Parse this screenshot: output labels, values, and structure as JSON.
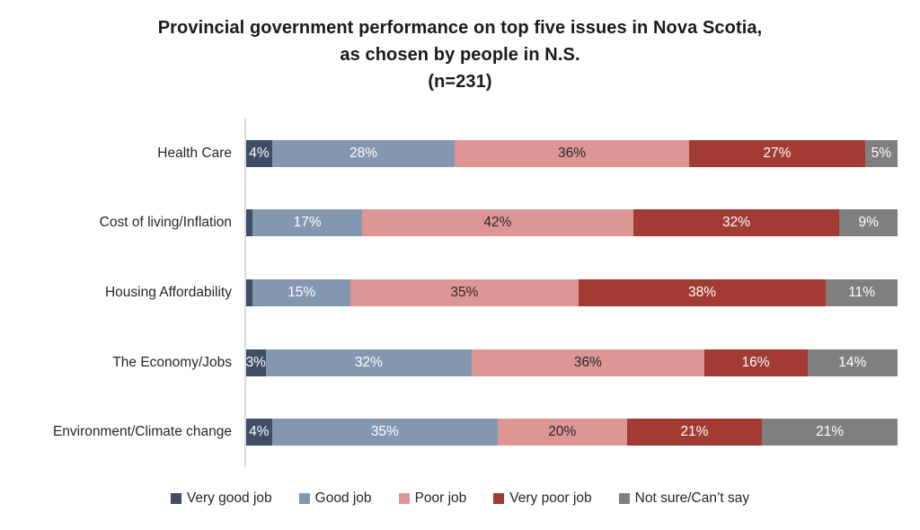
{
  "title": {
    "line1": "Provincial government performance on top five issues in Nova Scotia,",
    "line2": "as chosen by people in N.S.",
    "line3": "(n=231)"
  },
  "colors": {
    "very_good_job": "#3F4E66",
    "good_job": "#8497B0",
    "poor_job": "#DE9695",
    "very_poor_job": "#A23B33",
    "not_sure": "#7F7F7F",
    "axis_line": "#D9D9D9",
    "label_on_dark": "#FFFFFF",
    "label_on_light": "#262626"
  },
  "chart_data": {
    "type": "bar",
    "subtype": "horizontal-100pct-stacked",
    "title": "Provincial government performance on top five issues in Nova Scotia, as chosen by people in N.S. (n=231)",
    "categories": [
      "Health Care",
      "Cost of living/Inflation",
      "Housing Affordability",
      "The Economy/Jobs",
      "Environment/Climate change"
    ],
    "series": [
      {
        "name": "Very good job",
        "color_key": "very_good_job",
        "label_style": "dark",
        "values": [
          4,
          1,
          1,
          3,
          4
        ],
        "labels": [
          "4%",
          "",
          "",
          "3%",
          "4%"
        ]
      },
      {
        "name": "Good job",
        "color_key": "good_job",
        "label_style": "dark",
        "values": [
          28,
          17,
          15,
          32,
          35
        ],
        "labels": [
          "28%",
          "17%",
          "15%",
          "32%",
          "35%"
        ]
      },
      {
        "name": "Poor job",
        "color_key": "poor_job",
        "label_style": "light",
        "values": [
          36,
          42,
          35,
          36,
          20
        ],
        "labels": [
          "36%",
          "42%",
          "35%",
          "36%",
          "20%"
        ]
      },
      {
        "name": "Very poor job",
        "color_key": "very_poor_job",
        "label_style": "dark",
        "values": [
          27,
          32,
          38,
          16,
          21
        ],
        "labels": [
          "27%",
          "32%",
          "38%",
          "16%",
          "21%"
        ]
      },
      {
        "name": "Not sure/Can’t say",
        "color_key": "not_sure",
        "label_style": "dark",
        "values": [
          5,
          9,
          11,
          14,
          21
        ],
        "labels": [
          "5%",
          "9%",
          "11%",
          "14%",
          "21%"
        ]
      }
    ],
    "legend": [
      "Very good job",
      "Good job",
      "Poor job",
      "Very poor job",
      "Not sure/Can’t say"
    ],
    "legend_position": "bottom",
    "xlabel": "",
    "ylabel": "",
    "xlim": [
      0,
      100
    ],
    "grid": false,
    "value_unit": "%"
  }
}
